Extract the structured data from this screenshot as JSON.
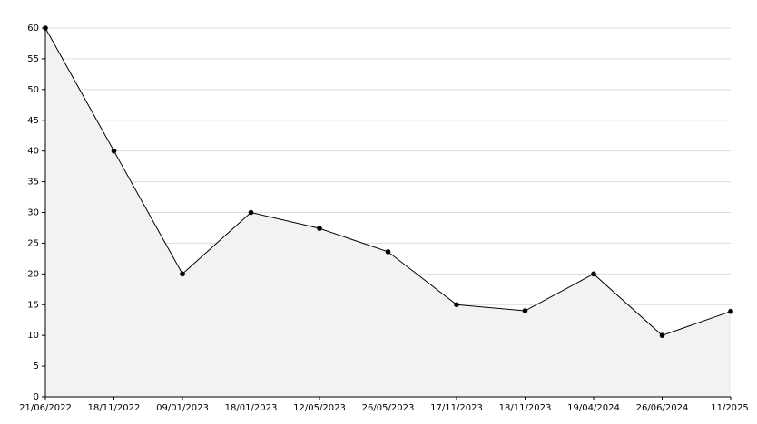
{
  "chart_data": {
    "type": "area",
    "categories": [
      "21/06/2022",
      "18/11/2022",
      "09/01/2023",
      "18/01/2023",
      "12/05/2023",
      "26/05/2023",
      "17/11/2023",
      "18/11/2023",
      "19/04/2024",
      "26/06/2024",
      "11/2025"
    ],
    "values": [
      60,
      40,
      20,
      30,
      27.4,
      23.6,
      15,
      14,
      20,
      10,
      13.9
    ],
    "color": "#000000",
    "fill": "#f2f2f2",
    "ylim": [
      0,
      60
    ],
    "yticks": [
      0,
      5,
      10,
      15,
      20,
      25,
      30,
      35,
      40,
      45,
      50,
      55,
      60
    ],
    "grid": true
  }
}
